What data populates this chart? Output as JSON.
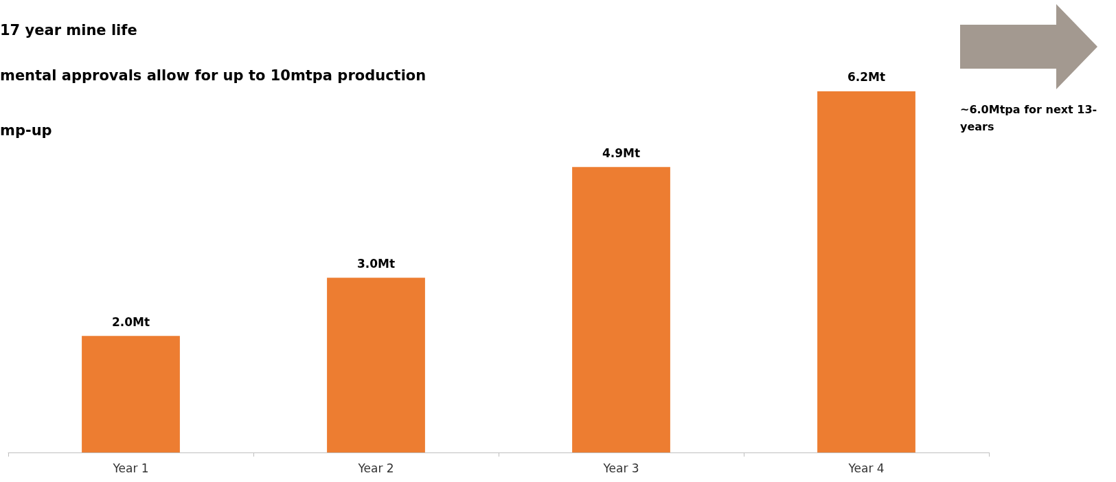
{
  "chart_data": {
    "type": "bar",
    "categories": [
      "Year 1",
      "Year 2",
      "Year 3",
      "Year 4"
    ],
    "values": [
      2.0,
      3.0,
      4.9,
      6.2
    ],
    "value_labels": [
      "2.0Mt",
      "3.0Mt",
      "4.9Mt",
      "6.2Mt"
    ],
    "color": "#ed7d31",
    "annotations": [
      "17 year mine life",
      "mental approvals allow for up to 10mtpa production",
      "mp-up",
      "~6.0Mtpa for next 13-years"
    ]
  }
}
